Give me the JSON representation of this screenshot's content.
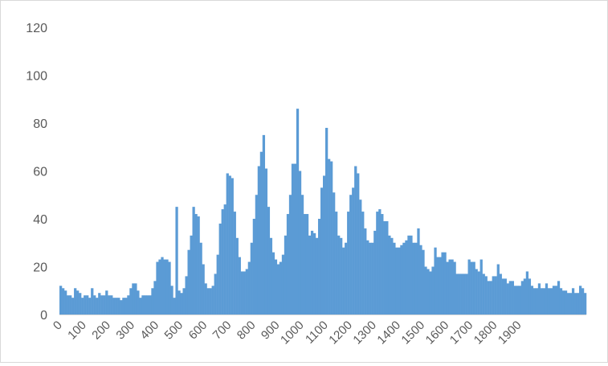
{
  "chart_data": {
    "type": "bar",
    "title": "",
    "xlabel": "",
    "ylabel": "",
    "ylim": [
      0,
      120
    ],
    "yticks": [
      "0",
      "20",
      "40",
      "60",
      "80",
      "100",
      "120"
    ],
    "xticks": [
      "0",
      "100",
      "200",
      "300",
      "400",
      "500",
      "600",
      "700",
      "800",
      "900",
      "1000",
      "1100",
      "1200",
      "1300",
      "1400",
      "1500",
      "1600",
      "1700",
      "1800",
      "1900"
    ],
    "x_start": 0,
    "bin_width": 10,
    "grid": false,
    "legend": "none",
    "bar_color": "#5b9bd5",
    "values": [
      12,
      11,
      10,
      8,
      8,
      7,
      11,
      10,
      9,
      7,
      8,
      8,
      7,
      11,
      8,
      7,
      9,
      8,
      8,
      10,
      8,
      8,
      7,
      7,
      7,
      6,
      7,
      7,
      8,
      11,
      13,
      13,
      10,
      7,
      8,
      8,
      8,
      8,
      11,
      14,
      22,
      23,
      24,
      23,
      23,
      22,
      12,
      7,
      45,
      10,
      9,
      11,
      16,
      27,
      33,
      45,
      42,
      41,
      30,
      21,
      13,
      11,
      11,
      12,
      17,
      25,
      38,
      44,
      46,
      59,
      58,
      57,
      43,
      32,
      24,
      18,
      18,
      19,
      22,
      30,
      40,
      50,
      62,
      68,
      75,
      61,
      45,
      32,
      26,
      23,
      21,
      22,
      25,
      33,
      42,
      50,
      63,
      63,
      86,
      60,
      50,
      42,
      42,
      33,
      35,
      34,
      32,
      40,
      53,
      58,
      78,
      65,
      64,
      51,
      43,
      33,
      32,
      28,
      30,
      43,
      50,
      53,
      62,
      59,
      48,
      43,
      36,
      31,
      30,
      30,
      35,
      43,
      44,
      42,
      39,
      39,
      33,
      32,
      30,
      28,
      28,
      29,
      30,
      31,
      33,
      33,
      30,
      30,
      36,
      29,
      27,
      20,
      19,
      18,
      20,
      28,
      24,
      24,
      26,
      26,
      22,
      23,
      23,
      22,
      17,
      17,
      17,
      17,
      17,
      23,
      22,
      22,
      19,
      18,
      23,
      17,
      16,
      14,
      14,
      16,
      16,
      21,
      17,
      15,
      15,
      13,
      14,
      14,
      12,
      12,
      12,
      14,
      15,
      18,
      15,
      12,
      11,
      11,
      13,
      11,
      11,
      13,
      11,
      11,
      12,
      12,
      14,
      11,
      10,
      10,
      9,
      9,
      11,
      9,
      9,
      12,
      11,
      9
    ]
  }
}
